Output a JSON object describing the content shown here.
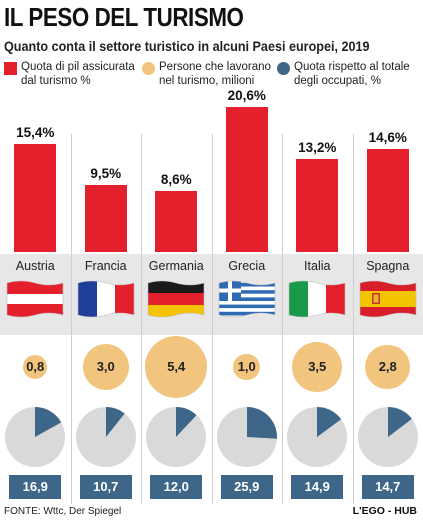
{
  "header": {
    "title": "IL PESO DEL TURISMO",
    "subtitle": "Quanto conta il settore turistico in alcuni Paesi europei, 2019"
  },
  "legend": [
    {
      "label": "Quota di pil assicurata dal turismo %",
      "color": "#e3202b",
      "shape": "square"
    },
    {
      "label": "Persone che lavorano nel turismo, milioni",
      "color": "#f2c57e",
      "shape": "circle"
    },
    {
      "label": "Quota rispetto al totale degli occupati, %",
      "color": "#3e6689",
      "shape": "pie"
    }
  ],
  "chart_data": {
    "type": "bar",
    "categories": [
      "Austria",
      "Francia",
      "Germania",
      "Grecia",
      "Italia",
      "Spagna"
    ],
    "series": [
      {
        "name": "Quota di pil assicurata dal turismo %",
        "values": [
          15.4,
          9.5,
          8.6,
          20.6,
          13.2,
          14.6
        ],
        "labels": [
          "15,4%",
          "9,5%",
          "8,6%",
          "20,6%",
          "13,2%",
          "14,6%"
        ]
      },
      {
        "name": "Persone che lavorano nel turismo, milioni",
        "values": [
          0.8,
          3.0,
          5.4,
          1.0,
          3.5,
          2.8
        ],
        "labels": [
          "0,8",
          "3,0",
          "5,4",
          "1,0",
          "3,5",
          "2,8"
        ]
      },
      {
        "name": "Quota rispetto al totale degli occupati, %",
        "values": [
          16.9,
          10.7,
          12.0,
          25.9,
          14.9,
          14.7
        ],
        "labels": [
          "16,9",
          "10,7",
          "12,0",
          "25,9",
          "14,9",
          "14,7"
        ]
      }
    ],
    "colors": {
      "bar": "#e3202b",
      "people_circle": "#f2c57e",
      "pie_fill": "#3e6689",
      "pie_bg": "#d9d9d9"
    }
  },
  "flags": [
    "austria-flag-icon",
    "france-flag-icon",
    "germany-flag-icon",
    "greece-flag-icon",
    "italy-flag-icon",
    "spain-flag-icon"
  ],
  "footer": {
    "source": "FONTE: Wttc, Der Spiegel",
    "logo": "L'EGO - HUB"
  }
}
